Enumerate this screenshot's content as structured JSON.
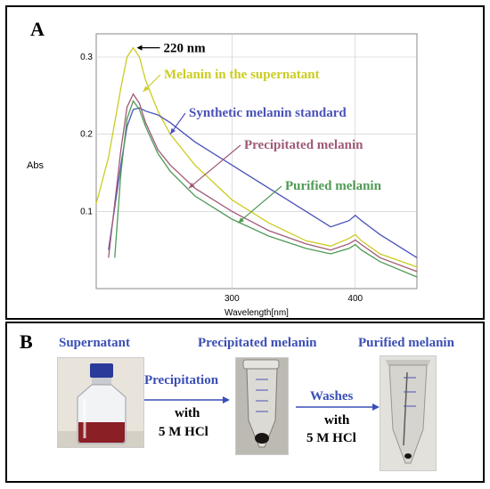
{
  "panel_a": {
    "letter": "A"
  },
  "panel_b": {
    "letter": "B",
    "steps": [
      "Supernatant",
      "Precipitated melanin",
      "Purified melanin"
    ],
    "arrow1": {
      "line1": "Precipitation",
      "line2": "with",
      "line3": "5 M HCl"
    },
    "arrow2": {
      "line1": "Washes",
      "line2": "with",
      "line3": "5 M HCl"
    }
  },
  "colors": {
    "supernatant": "#cccc22",
    "standard": "#4a52b8",
    "precipitated": "#a05a78",
    "purified": "#4f9a55",
    "label_blue": "#3b4fb5"
  },
  "chart_data": {
    "type": "line",
    "title": "",
    "xlabel": "Wavelength[nm]",
    "ylabel": "Abs",
    "xlim": [
      190,
      450
    ],
    "ylim": [
      0,
      0.33
    ],
    "xticks": [
      300,
      400
    ],
    "yticks": [
      0.1,
      0.2,
      0.3
    ],
    "grid": true,
    "peak_annotation": "220 nm",
    "series": [
      {
        "name": "Melanin in the supernatant",
        "color": "#cccc22",
        "x": [
          190,
          200,
          210,
          215,
          220,
          225,
          230,
          240,
          250,
          270,
          300,
          330,
          360,
          380,
          395,
          400,
          405,
          420,
          450
        ],
        "y": [
          0.11,
          0.17,
          0.26,
          0.3,
          0.312,
          0.3,
          0.27,
          0.23,
          0.2,
          0.16,
          0.115,
          0.085,
          0.062,
          0.055,
          0.065,
          0.07,
          0.062,
          0.045,
          0.028
        ]
      },
      {
        "name": "Synthetic melanin standard",
        "color": "#4a52b8",
        "x": [
          200,
          210,
          215,
          220,
          225,
          230,
          240,
          250,
          270,
          300,
          330,
          360,
          380,
          395,
          400,
          405,
          420,
          450
        ],
        "y": [
          0.05,
          0.16,
          0.21,
          0.232,
          0.234,
          0.23,
          0.225,
          0.215,
          0.19,
          0.16,
          0.13,
          0.1,
          0.08,
          0.088,
          0.095,
          0.088,
          0.07,
          0.04
        ]
      },
      {
        "name": "Precipitated melanin",
        "color": "#a05a78",
        "x": [
          200,
          210,
          215,
          220,
          225,
          230,
          240,
          250,
          270,
          300,
          330,
          360,
          380,
          395,
          400,
          405,
          420,
          450
        ],
        "y": [
          0.04,
          0.18,
          0.235,
          0.252,
          0.24,
          0.215,
          0.18,
          0.16,
          0.13,
          0.1,
          0.075,
          0.058,
          0.05,
          0.058,
          0.063,
          0.057,
          0.04,
          0.022
        ]
      },
      {
        "name": "Purified melanin",
        "color": "#4f9a55",
        "x": [
          205,
          210,
          215,
          220,
          225,
          230,
          240,
          250,
          270,
          300,
          330,
          360,
          380,
          395,
          400,
          405,
          420,
          450
        ],
        "y": [
          0.04,
          0.15,
          0.22,
          0.243,
          0.232,
          0.21,
          0.175,
          0.152,
          0.12,
          0.09,
          0.068,
          0.052,
          0.045,
          0.052,
          0.057,
          0.05,
          0.035,
          0.015
        ]
      }
    ]
  }
}
